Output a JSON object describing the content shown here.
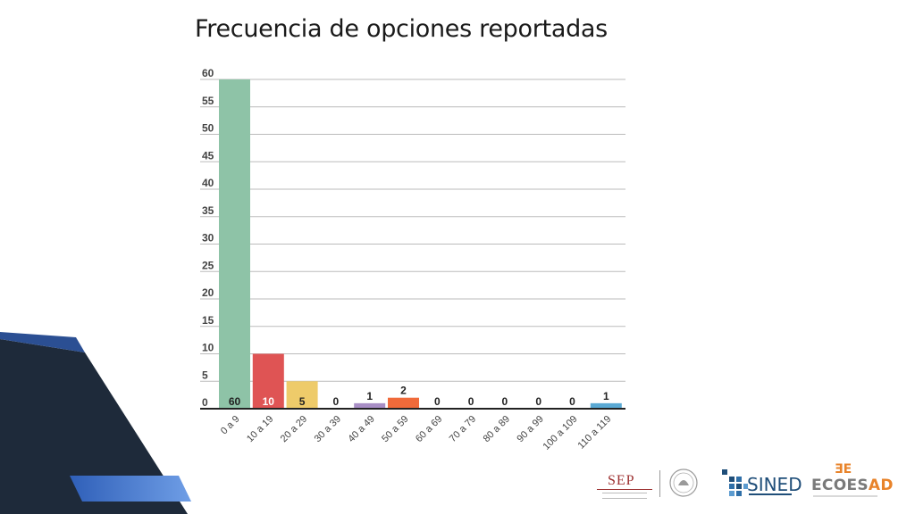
{
  "title": "Frecuencia de opciones reportadas",
  "chart_data": {
    "type": "bar",
    "title": "Frecuencia de opciones reportadas",
    "categories": [
      "0 a 9",
      "10 a 19",
      "20 a 29",
      "30 a 39",
      "40 a 49",
      "50 a 59",
      "60 a 69",
      "70 a 79",
      "80 a 89",
      "90 a 99",
      "100 a 109",
      "110 a 119"
    ],
    "values": [
      60,
      10,
      5,
      0,
      1,
      2,
      0,
      0,
      0,
      0,
      0,
      1
    ],
    "colors": [
      "#8ec3a7",
      "#df5454",
      "#eecb6a",
      "#b6b6b6",
      "#a88ec5",
      "#f06a3a",
      "#aaaaaa",
      "#aaaaaa",
      "#aaaaaa",
      "#aaaaaa",
      "#aaaaaa",
      "#5aa9d4"
    ],
    "yticks": [
      0,
      5,
      10,
      15,
      20,
      25,
      30,
      35,
      40,
      45,
      50,
      55,
      60
    ],
    "ylim": [
      0,
      60
    ],
    "xlabel": "",
    "ylabel": "",
    "grid": true,
    "legend": "none"
  },
  "footer": {
    "sep_label": "SEP",
    "sined_label": "SINED",
    "ecoesad_prefix": "ECOES",
    "ecoesad_suffix": "AD",
    "ecoesad_mark": "ƎE"
  },
  "colors": {
    "grid": "#bbbbbb",
    "axis": "#222222",
    "sep_red": "#9c2f2f",
    "sined_blue": "#1f4e79",
    "ecoesad_orange": "#e8832a",
    "ecoesad_gray": "#7a7a7a"
  }
}
